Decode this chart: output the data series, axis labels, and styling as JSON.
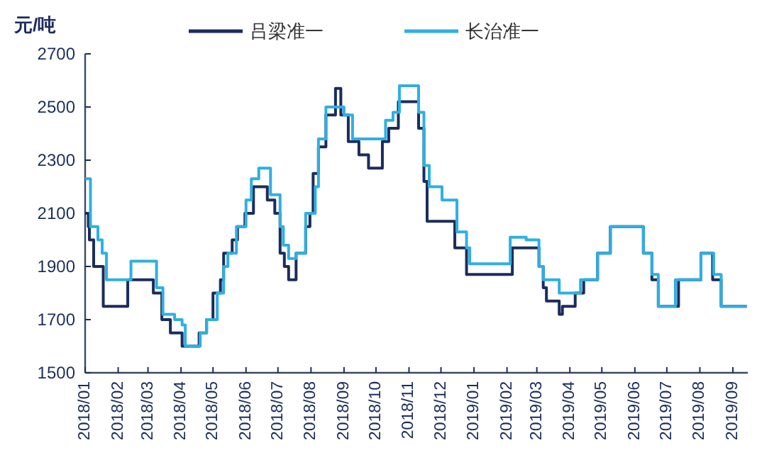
{
  "chart_data": {
    "type": "step",
    "ylabel": "元/吨",
    "legend": "top",
    "grid": false,
    "ylim": [
      1500,
      2700
    ],
    "yticks": [
      1500,
      1700,
      1900,
      2100,
      2300,
      2500,
      2700
    ],
    "xlim": [
      "2018-01-01",
      "2019-09-15"
    ],
    "xticks": [
      {
        "value": "2018-01",
        "label": "2018/01"
      },
      {
        "value": "2018-02",
        "label": "2018/02"
      },
      {
        "value": "2018-03",
        "label": "2018/03"
      },
      {
        "value": "2018-04",
        "label": "2018/04"
      },
      {
        "value": "2018-05",
        "label": "2018/05"
      },
      {
        "value": "2018-06",
        "label": "2018/06"
      },
      {
        "value": "2018-07",
        "label": "2018/07"
      },
      {
        "value": "2018-08",
        "label": "2018/08"
      },
      {
        "value": "2018-09",
        "label": "2018/09"
      },
      {
        "value": "2018-10",
        "label": "2018/10"
      },
      {
        "value": "2018-11",
        "label": "2018/11"
      },
      {
        "value": "2018-12",
        "label": "2018/12"
      },
      {
        "value": "2019-01",
        "label": "2019/01"
      },
      {
        "value": "2019-02",
        "label": "2019/02"
      },
      {
        "value": "2019-03",
        "label": "2019/03"
      },
      {
        "value": "2019-04",
        "label": "2019/04"
      },
      {
        "value": "2019-05",
        "label": "2019/05"
      },
      {
        "value": "2019-06",
        "label": "2019/06"
      },
      {
        "value": "2019-07",
        "label": "2019/07"
      },
      {
        "value": "2019-08",
        "label": "2019/08"
      },
      {
        "value": "2019-09",
        "label": "2019/09"
      }
    ],
    "series": [
      {
        "name": "吕梁准一",
        "color": "#1b2d5c",
        "x": [
          "2018-01-01",
          "2018-01-04",
          "2018-01-05",
          "2018-01-09",
          "2018-01-18",
          "2018-02-10",
          "2018-03-06",
          "2018-03-14",
          "2018-03-22",
          "2018-04-02",
          "2018-04-18",
          "2018-04-25",
          "2018-05-01",
          "2018-05-08",
          "2018-05-11",
          "2018-05-19",
          "2018-05-24",
          "2018-05-31",
          "2018-06-08",
          "2018-06-21",
          "2018-06-28",
          "2018-07-03",
          "2018-07-07",
          "2018-07-11",
          "2018-07-18",
          "2018-07-27",
          "2018-07-31",
          "2018-08-03",
          "2018-08-08",
          "2018-08-15",
          "2018-08-24",
          "2018-08-29",
          "2018-09-05",
          "2018-09-15",
          "2018-09-24",
          "2018-10-07",
          "2018-10-13",
          "2018-10-22",
          "2018-11-10",
          "2018-11-15",
          "2018-11-18",
          "2018-12-14",
          "2018-12-25",
          "2019-02-06",
          "2019-03-03",
          "2019-03-07",
          "2019-03-10",
          "2019-03-22",
          "2019-03-25",
          "2019-04-06",
          "2019-04-14",
          "2019-04-27",
          "2019-05-09",
          "2019-06-09",
          "2019-06-17",
          "2019-06-23",
          "2019-07-12",
          "2019-08-02",
          "2019-08-13",
          "2019-08-21",
          "2019-09-14"
        ],
        "values": [
          2100,
          2050,
          2000,
          1900,
          1750,
          1850,
          1800,
          1700,
          1650,
          1600,
          1650,
          1700,
          1800,
          1850,
          1950,
          2000,
          2050,
          2100,
          2200,
          2150,
          2100,
          1950,
          1900,
          1850,
          1950,
          2050,
          2100,
          2250,
          2350,
          2470,
          2570,
          2470,
          2370,
          2320,
          2270,
          2370,
          2420,
          2520,
          2420,
          2220,
          2070,
          1970,
          1870,
          1970,
          1900,
          1820,
          1770,
          1720,
          1750,
          1800,
          1850,
          1950,
          2050,
          1950,
          1850,
          1750,
          1850,
          1950,
          1850,
          1750,
          1750
        ]
      },
      {
        "name": "长治准一",
        "color": "#2fafe2",
        "x": [
          "2018-01-01",
          "2018-01-06",
          "2018-01-13",
          "2018-01-17",
          "2018-01-21",
          "2018-02-13",
          "2018-03-09",
          "2018-03-15",
          "2018-03-26",
          "2018-04-02",
          "2018-04-05",
          "2018-04-19",
          "2018-04-25",
          "2018-05-05",
          "2018-05-11",
          "2018-05-15",
          "2018-05-23",
          "2018-06-01",
          "2018-06-06",
          "2018-06-13",
          "2018-06-24",
          "2018-07-03",
          "2018-07-06",
          "2018-07-11",
          "2018-07-18",
          "2018-07-27",
          "2018-08-05",
          "2018-08-08",
          "2018-08-15",
          "2018-09-01",
          "2018-09-09",
          "2018-10-10",
          "2018-10-17",
          "2018-10-23",
          "2018-11-10",
          "2018-11-15",
          "2018-11-20",
          "2018-12-02",
          "2018-12-16",
          "2018-12-25",
          "2018-12-28",
          "2019-02-04",
          "2019-02-19",
          "2019-03-03",
          "2019-03-07",
          "2019-03-22",
          "2019-04-11",
          "2019-04-27",
          "2019-05-09",
          "2019-06-09",
          "2019-06-17",
          "2019-06-23",
          "2019-07-09",
          "2019-08-02",
          "2019-08-14",
          "2019-08-21",
          "2019-09-14"
        ],
        "values": [
          2230,
          2050,
          2000,
          1950,
          1850,
          1920,
          1820,
          1720,
          1700,
          1680,
          1600,
          1650,
          1700,
          1800,
          1900,
          1950,
          2050,
          2150,
          2230,
          2270,
          2170,
          2050,
          1980,
          1930,
          1950,
          2100,
          2200,
          2380,
          2500,
          2470,
          2380,
          2450,
          2480,
          2580,
          2480,
          2280,
          2200,
          2150,
          2030,
          1970,
          1910,
          2010,
          2000,
          1900,
          1850,
          1800,
          1850,
          1950,
          2050,
          1950,
          1870,
          1750,
          1850,
          1950,
          1870,
          1750,
          1750
        ]
      }
    ]
  }
}
